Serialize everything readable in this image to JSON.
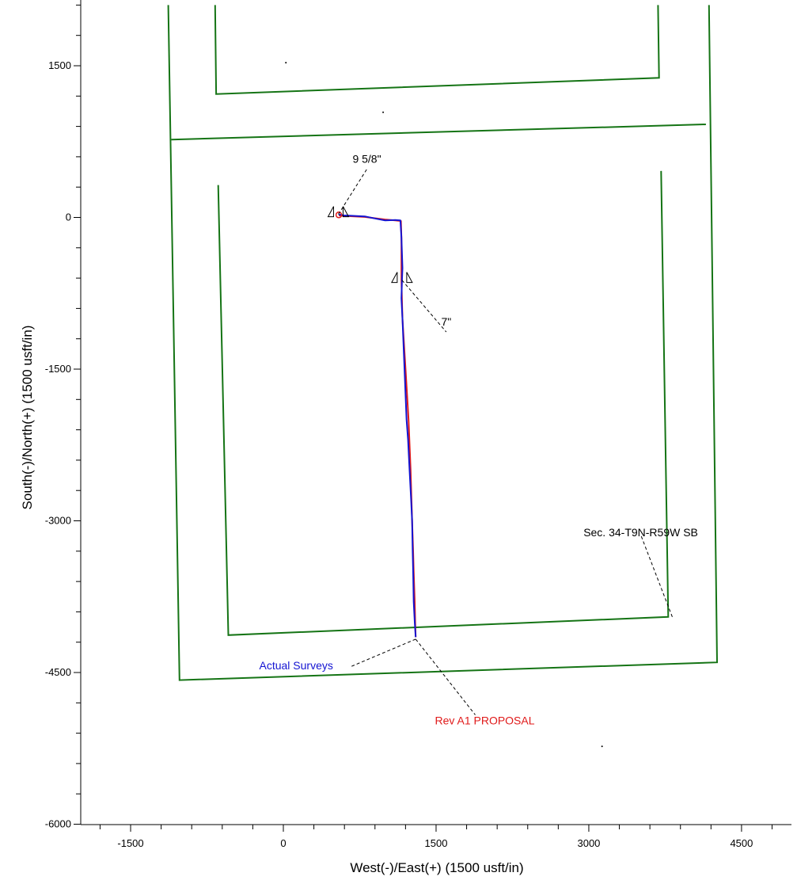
{
  "chart_data": {
    "type": "line",
    "title": "",
    "xlabel": "West(-)/East(+) (1500 usft/in)",
    "ylabel": "South(-)/North(+) (1500 usft/in)",
    "xlim": [
      -2000,
      5000
    ],
    "ylim": [
      -6000,
      2100
    ],
    "x_ticks": [
      -1500,
      0,
      1500,
      3000,
      4500
    ],
    "y_ticks": [
      -6000,
      -4500,
      -3000,
      -1500,
      0,
      1500
    ],
    "x_tick_labels": [
      "-1500",
      "0",
      "1500",
      "3000",
      "4500"
    ],
    "y_tick_labels": [
      "-6000",
      "-4500",
      "-3000",
      "-1500",
      "0",
      "1500"
    ],
    "grid": false,
    "colors": {
      "boundary": "#157415",
      "actual": "#1414d2",
      "proposal": "#e01a1a",
      "annotation": "#000000"
    },
    "boundaries": [
      {
        "points": [
          [
            -1130,
            2100
          ],
          [
            -1020,
            -4575
          ],
          [
            4260,
            -4400
          ],
          [
            4180,
            2100
          ]
        ]
      },
      {
        "points": [
          [
            -1100,
            770
          ],
          [
            4150,
            920
          ]
        ]
      },
      {
        "points": [
          [
            -670,
            2100
          ],
          [
            -660,
            1220
          ],
          [
            3690,
            1380
          ],
          [
            3680,
            2100
          ]
        ]
      },
      {
        "points": [
          [
            -640,
            320
          ],
          [
            -540,
            -4130
          ],
          [
            3780,
            -3950
          ],
          [
            3710,
            460
          ]
        ]
      }
    ],
    "series": [
      {
        "name": "Actual Surveys",
        "color": "#1414d2",
        "x": [
          545,
          590,
          800,
          900,
          1000,
          1100,
          1150,
          1160,
          1170,
          1165,
          1160,
          1170,
          1190,
          1210,
          1225,
          1240,
          1255,
          1265,
          1270,
          1275,
          1280,
          1290,
          1300
        ],
        "y": [
          30,
          20,
          10,
          -10,
          -30,
          -25,
          -30,
          -200,
          -500,
          -620,
          -800,
          -1000,
          -1500,
          -2000,
          -2200,
          -2500,
          -2800,
          -3000,
          -3300,
          -3500,
          -3800,
          -4000,
          -4150
        ]
      },
      {
        "name": "Rev A1 PROPOSAL",
        "color": "#e01a1a",
        "x": [
          545,
          600,
          800,
          1000,
          1100,
          1155,
          1160,
          1160,
          1170,
          1200,
          1230,
          1250,
          1265,
          1275,
          1280,
          1290,
          1295,
          1300
        ],
        "y": [
          20,
          15,
          5,
          -20,
          -30,
          -35,
          -200,
          -620,
          -1000,
          -1500,
          -2000,
          -2500,
          -3000,
          -3300,
          -3500,
          -3800,
          -4000,
          -4150
        ]
      }
    ],
    "markers": [
      {
        "label": "9 5/8\"",
        "x": 540,
        "y": 30,
        "label_at": [
          820,
          540
        ]
      },
      {
        "label": "7\"",
        "x": 1165,
        "y": -620,
        "label_at": [
          1600,
          -1070
        ]
      }
    ],
    "annotations": [
      {
        "text": "Sec. 34-T9N-R59W SB",
        "color": "#000000",
        "at": [
          3820,
          -3950
        ],
        "label_at": [
          3510,
          -3170
        ]
      },
      {
        "text": "Actual Surveys",
        "color": "#1414d2",
        "at": [
          1300,
          -4170
        ],
        "label_at": [
          670,
          -4470
        ]
      },
      {
        "text": "Rev A1 PROPOSAL",
        "color": "#e01a1a",
        "at": [
          1300,
          -4170
        ],
        "label_at": [
          1885,
          -4950
        ]
      }
    ],
    "scatter_dots": [
      [
        25,
        1530
      ],
      [
        980,
        1040
      ],
      [
        3130,
        -5230
      ]
    ]
  }
}
